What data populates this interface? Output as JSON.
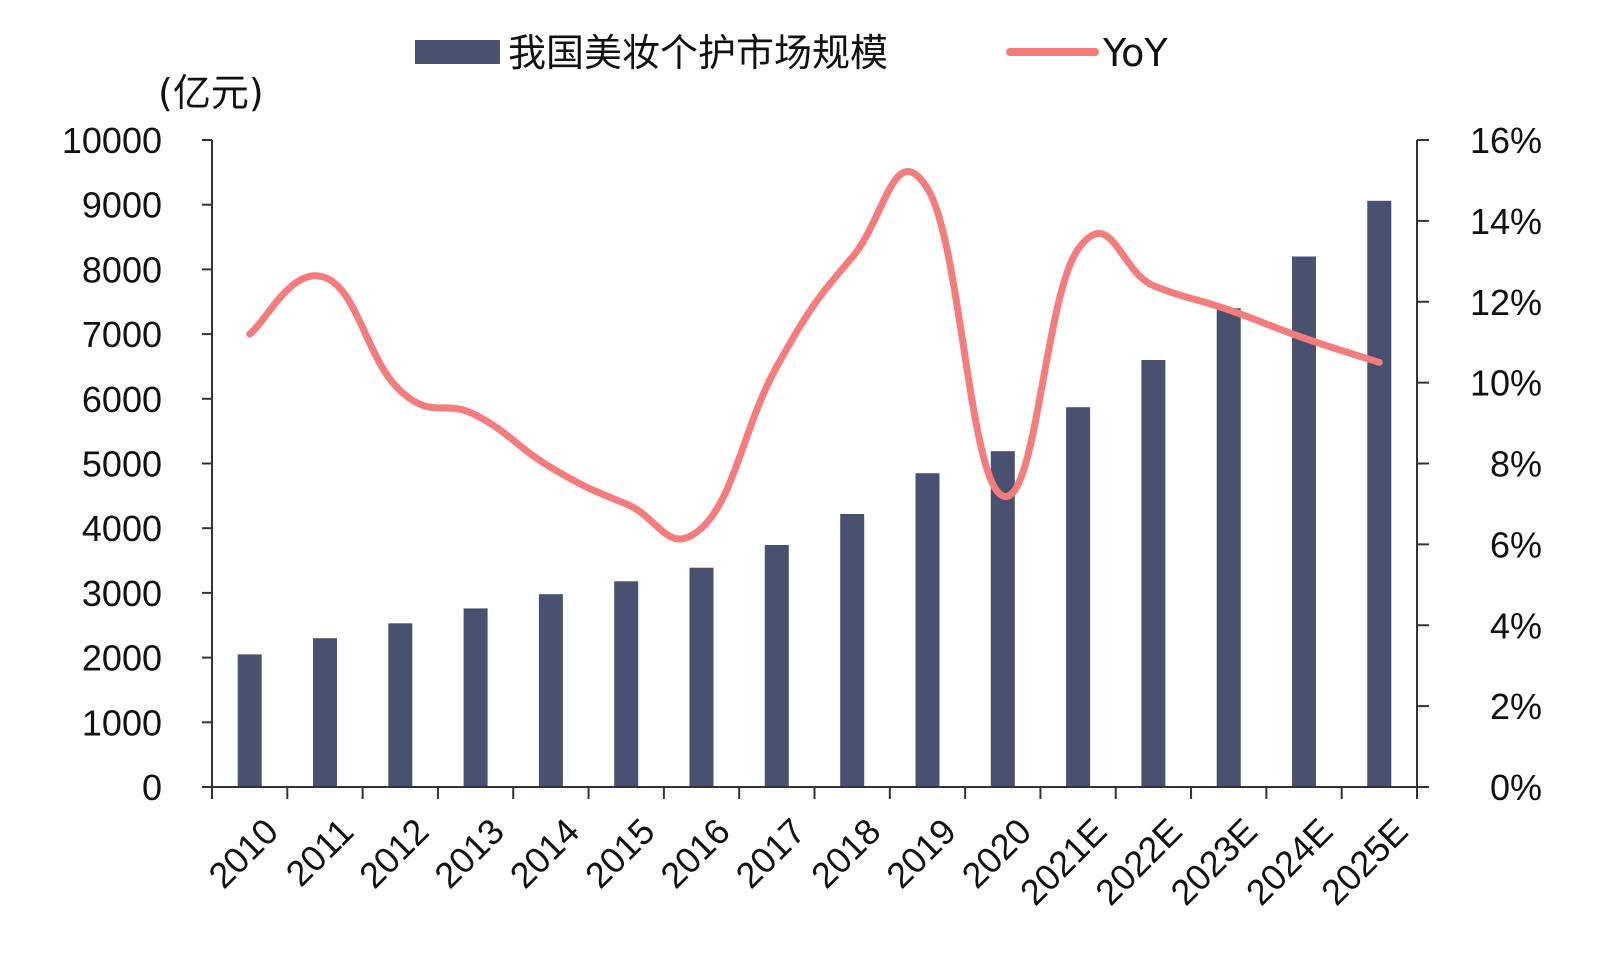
{
  "chart_data": {
    "type": "bar",
    "categories": [
      "2010",
      "2011",
      "2012",
      "2013",
      "2014",
      "2015",
      "2016",
      "2017",
      "2018",
      "2019",
      "2020",
      "2021E",
      "2022E",
      "2023E",
      "2024E",
      "2025E"
    ],
    "series": [
      {
        "name": "我国美妆个护市场规模",
        "type": "bar",
        "axis": "left",
        "values": [
          2050,
          2300,
          2530,
          2760,
          2980,
          3180,
          3390,
          3740,
          4220,
          4850,
          5190,
          5870,
          6600,
          7400,
          8200,
          9060
        ]
      },
      {
        "name": "YoY",
        "type": "line",
        "axis": "right",
        "values": [
          0.112,
          0.126,
          0.098,
          0.092,
          0.079,
          0.07,
          0.064,
          0.104,
          0.131,
          0.148,
          0.072,
          0.133,
          0.124,
          0.118,
          0.111,
          0.105
        ]
      }
    ],
    "y_left": {
      "unit_label": "(亿元)",
      "ylim": [
        0,
        10000
      ],
      "ticks": [
        "0",
        "1000",
        "2000",
        "3000",
        "4000",
        "5000",
        "6000",
        "7000",
        "8000",
        "9000",
        "10000"
      ]
    },
    "y_right": {
      "ylim": [
        0,
        0.16
      ],
      "ticks": [
        "0%",
        "2%",
        "4%",
        "6%",
        "8%",
        "10%",
        "12%",
        "14%",
        "16%"
      ]
    },
    "legend_position": "top",
    "grid": false,
    "colors": {
      "bar": "#4a5070",
      "line": "#f47c7c",
      "axis": "#333333",
      "text": "#111111"
    }
  }
}
